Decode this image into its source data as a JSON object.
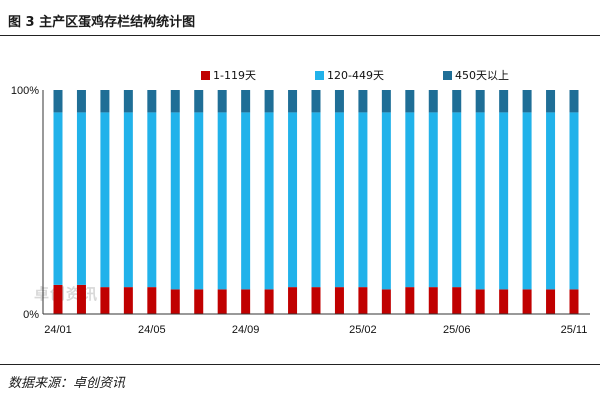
{
  "title": "图 3  主产区蛋鸡存栏结构统计图",
  "source": "数据来源：卓创资讯",
  "watermark": "卓创资讯",
  "colors": {
    "seg1": "#c00000",
    "seg2": "#21b2ea",
    "seg3": "#1f6e96"
  },
  "chart_data": {
    "type": "bar",
    "stacked": true,
    "categories": [
      "24/01",
      "24/02",
      "24/03",
      "24/04",
      "24/05",
      "24/06",
      "24/07",
      "24/08",
      "24/09",
      "24/10",
      "24/11",
      "24/12",
      "25/01",
      "25/02",
      "25/03",
      "25/04",
      "25/05",
      "25/06",
      "25/07",
      "25/08",
      "25/09",
      "25/10",
      "25/11"
    ],
    "x_tick_labels": [
      "24/01",
      "24/05",
      "24/09",
      "25/02",
      "25/06",
      "25/11"
    ],
    "y_tick_labels": [
      "100%",
      "0%"
    ],
    "ylim": [
      0,
      100
    ],
    "legend_position": "top",
    "series": [
      {
        "name": "1-119天",
        "values": [
          13,
          13,
          12,
          12,
          12,
          11,
          11,
          11,
          11,
          11,
          12,
          12,
          12,
          12,
          11,
          12,
          12,
          12,
          11,
          11,
          11,
          11,
          11
        ]
      },
      {
        "name": "120-449天",
        "values": [
          77,
          77,
          78,
          78,
          78,
          79,
          79,
          79,
          79,
          79,
          78,
          78,
          78,
          78,
          79,
          78,
          78,
          78,
          79,
          79,
          79,
          79,
          79
        ]
      },
      {
        "name": "450天以上",
        "values": [
          10,
          10,
          10,
          10,
          10,
          10,
          10,
          10,
          10,
          10,
          10,
          10,
          10,
          10,
          10,
          10,
          10,
          10,
          10,
          10,
          10,
          10,
          10
        ]
      }
    ]
  }
}
